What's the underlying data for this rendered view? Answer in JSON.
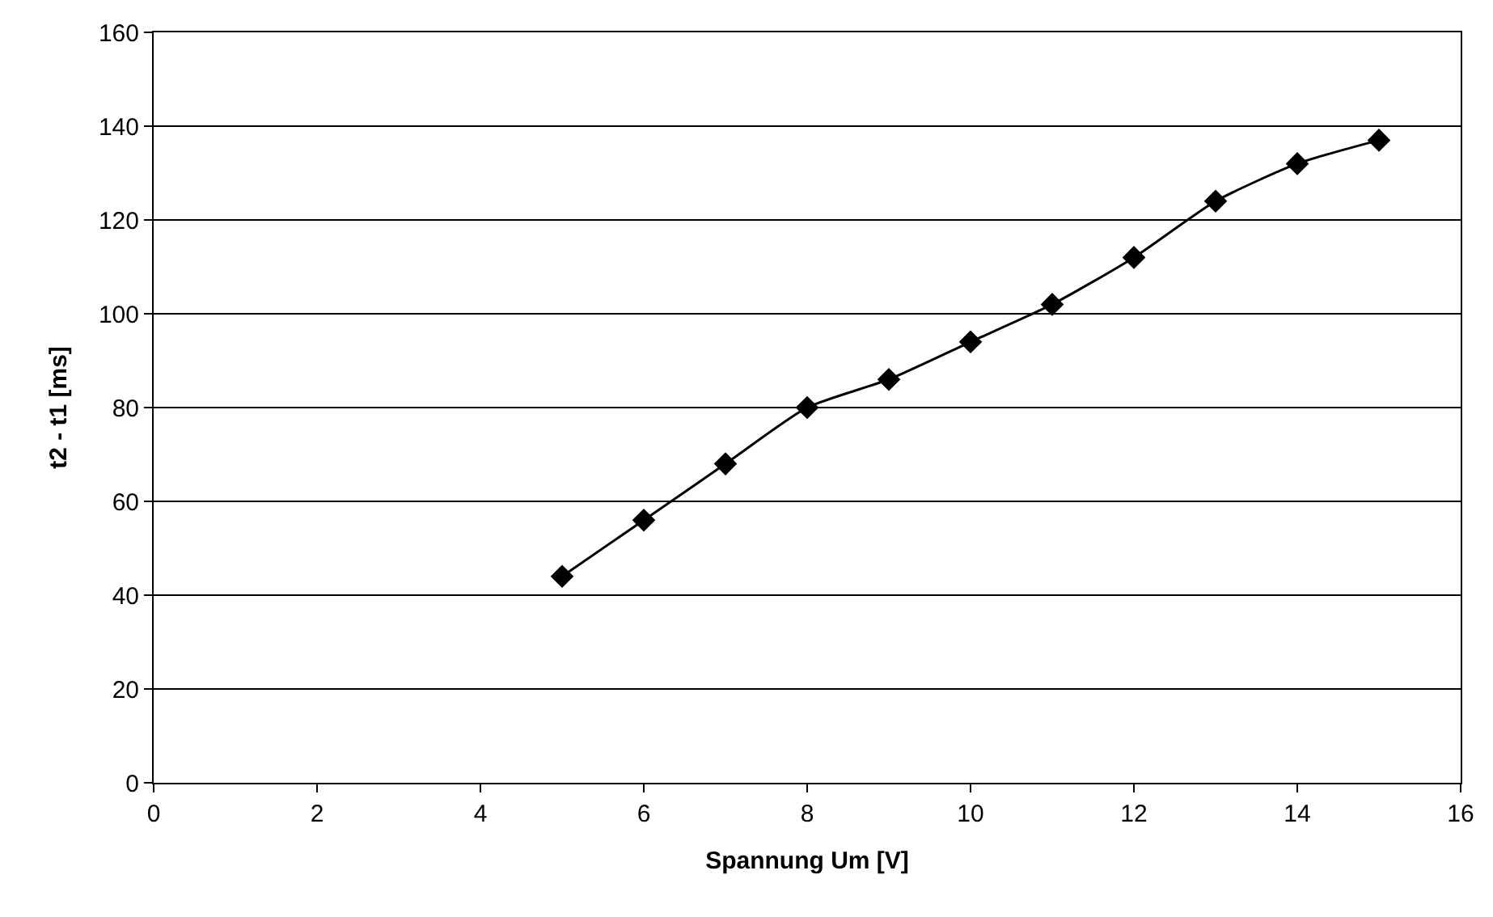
{
  "chart_data": {
    "type": "line",
    "xlabel": "Spannung Um [V]",
    "ylabel": "t2 - t1 [ms]",
    "x": [
      5,
      6,
      7,
      8,
      9,
      10,
      11,
      12,
      13,
      14,
      15
    ],
    "series": [
      {
        "color": "#000000",
        "values": [
          44,
          56,
          68,
          80,
          86,
          94,
          102,
          112,
          124,
          132,
          137
        ]
      }
    ],
    "xlim": [
      0,
      16
    ],
    "xticks": [
      0,
      2,
      4,
      6,
      8,
      10,
      12,
      14,
      16
    ],
    "ylim": [
      0,
      160
    ],
    "yticks": [
      0,
      20,
      40,
      60,
      80,
      100,
      120,
      140,
      160
    ],
    "grid": "y",
    "marker": "diamond",
    "line_style": "solid"
  }
}
